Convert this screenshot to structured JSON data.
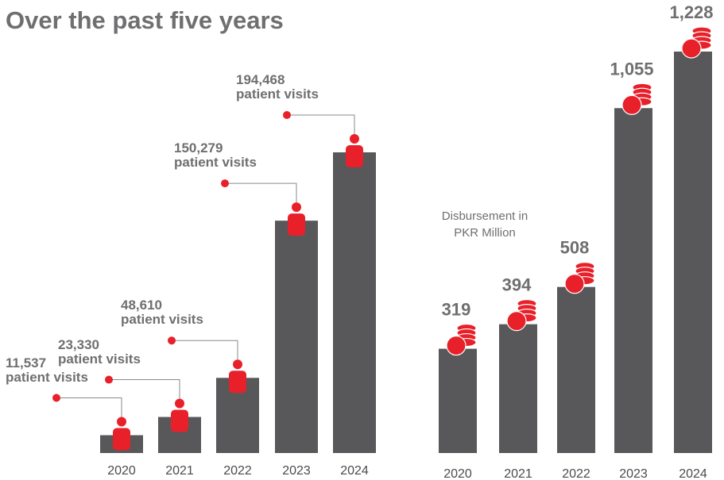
{
  "title": "Over the past five years",
  "colors": {
    "bar": "#58585a",
    "accent": "#e8202a",
    "text": "#6f6f71",
    "tick": "#4b4b4d"
  },
  "icons": {
    "left": "person-icon",
    "right": "coin-stack-icon"
  },
  "chart_data": [
    {
      "type": "bar",
      "categories": [
        "2020",
        "2021",
        "2022",
        "2023",
        "2024"
      ],
      "values": [
        11537,
        23330,
        48610,
        150279,
        194468
      ],
      "value_labels": [
        "11,537",
        "23,330",
        "48,610",
        "150,279",
        "194,468"
      ],
      "annotation_suffix": "patient visits",
      "title": "",
      "xlabel": "",
      "ylabel": "",
      "ylim": [
        0,
        200000
      ],
      "grid": false,
      "legend": "none"
    },
    {
      "type": "bar",
      "categories": [
        "2020",
        "2021",
        "2022",
        "2023",
        "2024"
      ],
      "values": [
        319,
        394,
        508,
        1055,
        1228
      ],
      "value_labels": [
        "319",
        "394",
        "508",
        "1,055",
        "1,228"
      ],
      "note": [
        "Disbursement in",
        "PKR Million"
      ],
      "title": "",
      "xlabel": "",
      "ylabel": "",
      "ylim": [
        0,
        1300
      ],
      "grid": false,
      "legend": "none"
    }
  ]
}
